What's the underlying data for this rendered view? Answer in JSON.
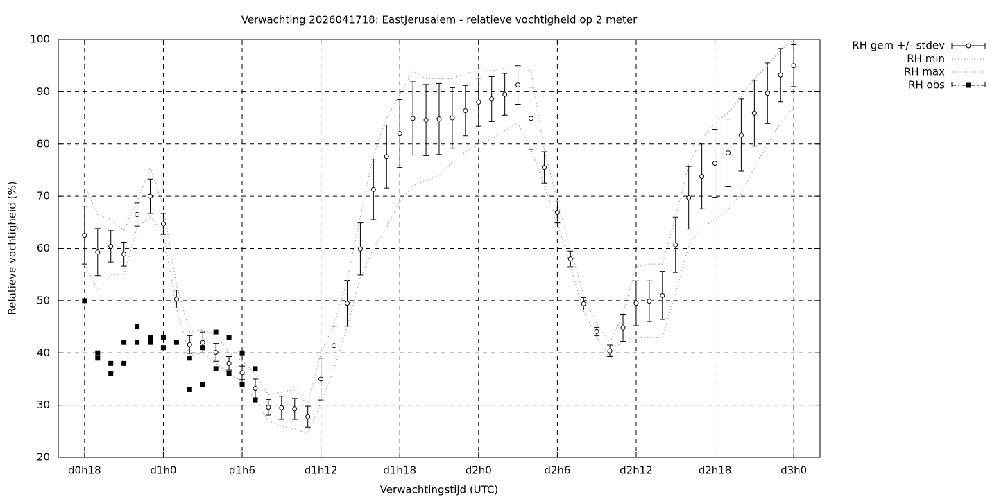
{
  "chart_data": {
    "type": "errorbar",
    "title": "Verwachting 2026041718: EastJerusalem - relatieve vochtigheid op 2 meter",
    "xlabel": "Verwachtingstijd (UTC)",
    "ylabel": "Relatieve vochtigheid (%)",
    "xlim": [
      16,
      74
    ],
    "ylim": [
      20,
      100
    ],
    "xticks": [
      {
        "value": 18,
        "label": "d0h18"
      },
      {
        "value": 24,
        "label": "d1h0"
      },
      {
        "value": 30,
        "label": "d1h6"
      },
      {
        "value": 36,
        "label": "d1h12"
      },
      {
        "value": 42,
        "label": "d1h18"
      },
      {
        "value": 48,
        "label": "d2h0"
      },
      {
        "value": 54,
        "label": "d2h6"
      },
      {
        "value": 60,
        "label": "d2h12"
      },
      {
        "value": 66,
        "label": "d2h18"
      },
      {
        "value": 72,
        "label": "d3h0"
      }
    ],
    "yticks": [
      20,
      30,
      40,
      50,
      60,
      70,
      80,
      90,
      100
    ],
    "grid": true,
    "legend": "outside-right",
    "x": [
      18,
      19,
      20,
      21,
      22,
      23,
      24,
      25,
      26,
      27,
      28,
      29,
      30,
      31,
      32,
      33,
      34,
      35,
      36,
      37,
      38,
      39,
      40,
      41,
      42,
      43,
      44,
      45,
      46,
      47,
      48,
      49,
      50,
      51,
      52,
      53,
      54,
      55,
      56,
      57,
      58,
      59,
      60,
      61,
      62,
      63,
      64,
      65,
      66,
      67,
      68,
      69,
      70,
      71,
      72
    ],
    "series": [
      {
        "name": "RH gem +/- stdev",
        "type": "errorbar",
        "color": "#000000",
        "values": [
          62.5,
          59.3,
          60.4,
          58.9,
          66.5,
          70,
          64.7,
          50.3,
          41.6,
          42,
          40.1,
          38,
          36.2,
          33.2,
          29.6,
          29.5,
          29.3,
          27.8,
          35,
          41.4,
          49.5,
          59.9,
          71.3,
          77.6,
          82,
          84.9,
          84.6,
          84.8,
          85,
          86.4,
          88,
          88.6,
          89.5,
          91.3,
          84.9,
          75.5,
          66.9,
          58,
          49.4,
          44.1,
          40.4,
          44.8,
          49.5,
          49.9,
          51,
          60.7,
          69.7,
          73.8,
          76.3,
          78.3,
          81.7,
          85.9,
          89.7,
          93.2,
          95
        ],
        "errors": [
          5.5,
          4.5,
          3,
          2.3,
          2.2,
          3.3,
          2,
          1.7,
          1.7,
          2,
          1.7,
          1.3,
          1.3,
          1.8,
          1.5,
          2.2,
          2,
          2,
          4,
          3.7,
          4.4,
          5,
          5.8,
          6,
          6.5,
          7,
          6.8,
          6.8,
          5.8,
          4.8,
          4.6,
          4.3,
          4,
          3.7,
          6,
          3,
          2,
          1.5,
          1.2,
          0.8,
          1.1,
          2.6,
          4.3,
          3.9,
          4.6,
          5.3,
          6,
          6.2,
          6.5,
          6.5,
          6.9,
          6.3,
          5.8,
          5.1,
          4
        ]
      },
      {
        "name": "RH min",
        "type": "line",
        "color": "#a0a0a0",
        "values": [
          57,
          52,
          55,
          55,
          64,
          66,
          63,
          48.5,
          39.5,
          40,
          38,
          36,
          34.5,
          31,
          27,
          26,
          25.5,
          24.5,
          30.5,
          37,
          45,
          54.5,
          60,
          64,
          69,
          72,
          73,
          74,
          76.5,
          78.5,
          80,
          81,
          82.5,
          84,
          79,
          72,
          65,
          56.5,
          48,
          43,
          39.5,
          42.5,
          43,
          43,
          43,
          51.5,
          60.5,
          64,
          65.5,
          67.5,
          70.5,
          75.5,
          80,
          84,
          87
        ]
      },
      {
        "name": "RH max",
        "type": "line",
        "color": "#a0a0a0",
        "values": [
          72,
          66.5,
          65.5,
          63.5,
          69,
          75.5,
          68,
          53,
          44,
          44.5,
          43.5,
          40,
          38.5,
          36,
          32,
          32.5,
          33,
          30,
          40,
          45.5,
          54,
          66,
          78,
          85,
          89.5,
          94,
          92.5,
          92.5,
          92.5,
          93.5,
          94,
          94,
          94.5,
          95,
          94,
          79,
          69,
          60,
          51,
          45.5,
          42,
          47.5,
          56.5,
          57,
          57,
          66,
          76,
          81,
          84,
          86,
          89,
          92.5,
          95,
          98,
          100
        ]
      },
      {
        "name": "RH obs",
        "type": "scatter",
        "color": "#000000",
        "x": [
          18,
          19,
          19,
          20,
          20,
          21,
          21,
          22,
          22,
          23,
          23,
          24,
          24,
          25,
          26,
          26,
          27,
          27,
          28,
          28,
          29,
          29,
          30,
          30,
          31,
          31
        ],
        "values": [
          50,
          40,
          39,
          38,
          36,
          42,
          38,
          45,
          42,
          43,
          42,
          43,
          41,
          42,
          39,
          33,
          41,
          34,
          44,
          37,
          43,
          36,
          40,
          34,
          37,
          31
        ]
      }
    ]
  }
}
